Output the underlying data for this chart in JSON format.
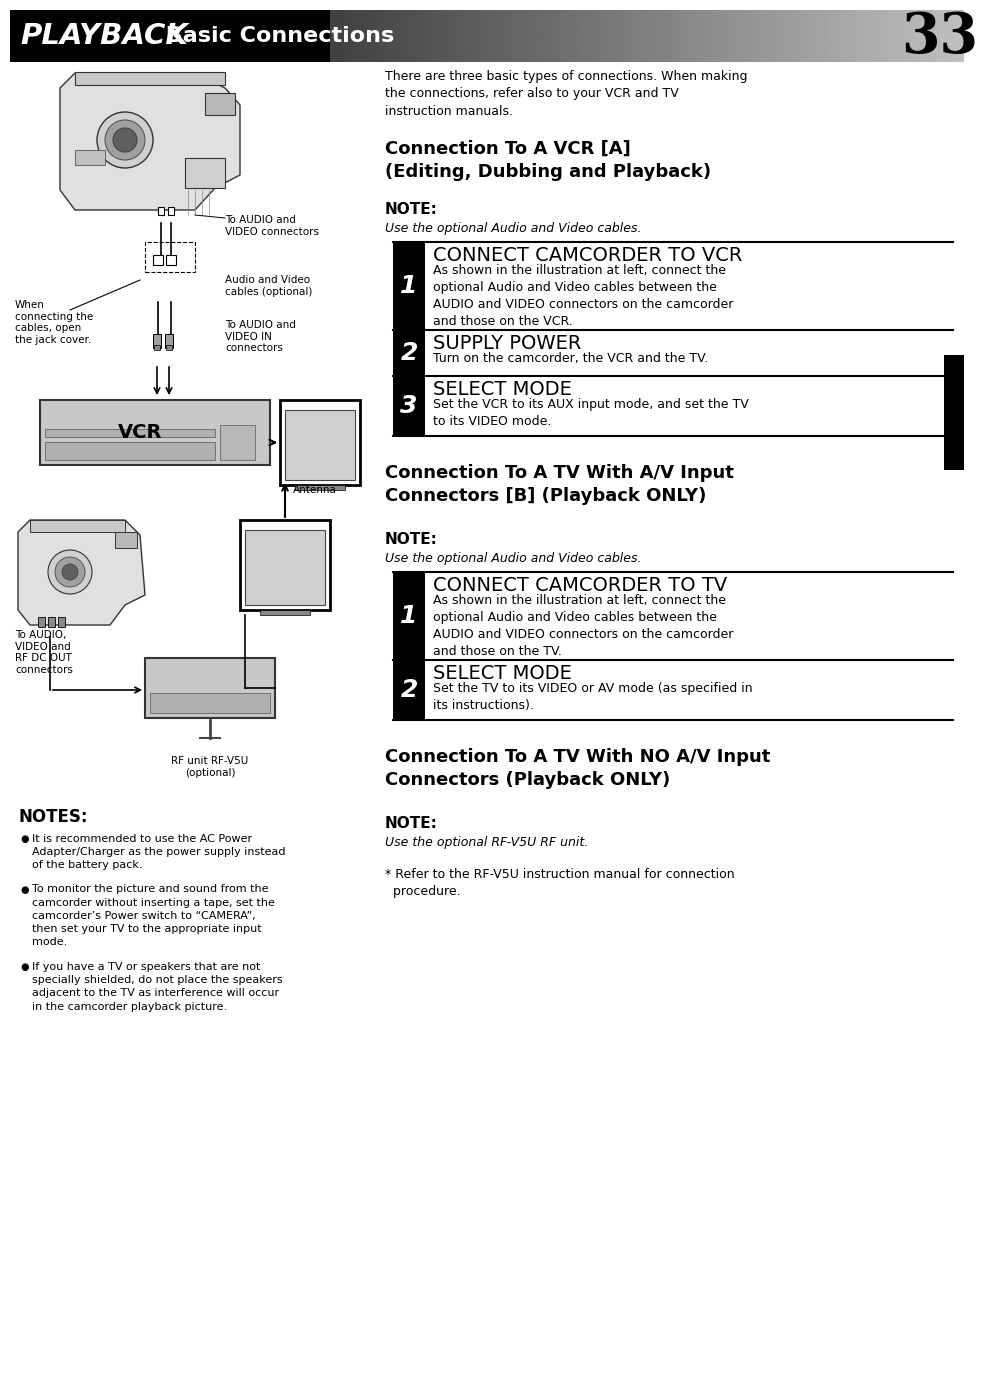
{
  "title_playback": "PLAYBACK",
  "title_basic": " Basic Connections",
  "page_number": "33",
  "bg_color": "#ffffff",
  "body_text_intro": "There are three basic types of connections. When making\nthe connections, refer also to your VCR and TV\ninstruction manuals.",
  "section1_title": "Connection To A VCR [A]\n(Editing, Dubbing and Playback)",
  "section1_note_label": "NOTE:",
  "section1_note_text": "Use the optional Audio and Video cables.",
  "step1a_heading": "CONNECT CAMCORDER TO VCR",
  "step1a_num": "1",
  "step1a_body": "As shown in the illustration at left, connect the\noptional Audio and Video cables between the\nAUDIO and VIDEO connectors on the camcorder\nand those on the VCR.",
  "step2a_heading": "SUPPLY POWER",
  "step2a_num": "2",
  "step2a_body": "Turn on the camcorder, the VCR and the TV.",
  "step3a_heading": "SELECT MODE",
  "step3a_num": "3",
  "step3a_body": "Set the VCR to its AUX input mode, and set the TV\nto its VIDEO mode.",
  "section2_title": "Connection To A TV With A/V Input\nConnectors [B] (Playback ONLY)",
  "section2_note_label": "NOTE:",
  "section2_note_text": "Use the optional Audio and Video cables.",
  "step1b_heading": "CONNECT CAMCORDER TO TV",
  "step1b_num": "1",
  "step1b_body": "As shown in the illustration at left, connect the\noptional Audio and Video cables between the\nAUDIO and VIDEO connectors on the camcorder\nand those on the TV.",
  "step2b_heading": "SELECT MODE",
  "step2b_num": "2",
  "step2b_body": "Set the TV to its VIDEO or AV mode (as specified in\nits instructions).",
  "section3_title": "Connection To A TV With NO A/V Input\nConnectors (Playback ONLY)",
  "section3_note_label": "NOTE:",
  "section3_note_text": "Use the optional RF-V5U RF unit.",
  "section3_ref": "* Refer to the RF-V5U instruction manual for connection\n  procedure.",
  "notes_label": "NOTES:",
  "notes_bullets": [
    "It is recommended to use the AC Power\nAdapter/Charger as the power supply instead\nof the battery pack.",
    "To monitor the picture and sound from the\ncamcorder without inserting a tape, set the\ncamcorder’s Power switch to “CAMERA”,\nthen set your TV to the appropriate input\nmode.",
    "If you have a TV or speakers that are not\nspecially shielded, do not place the speakers\nadjacent to the TV as interference will occur\nin the camcorder playback picture."
  ]
}
